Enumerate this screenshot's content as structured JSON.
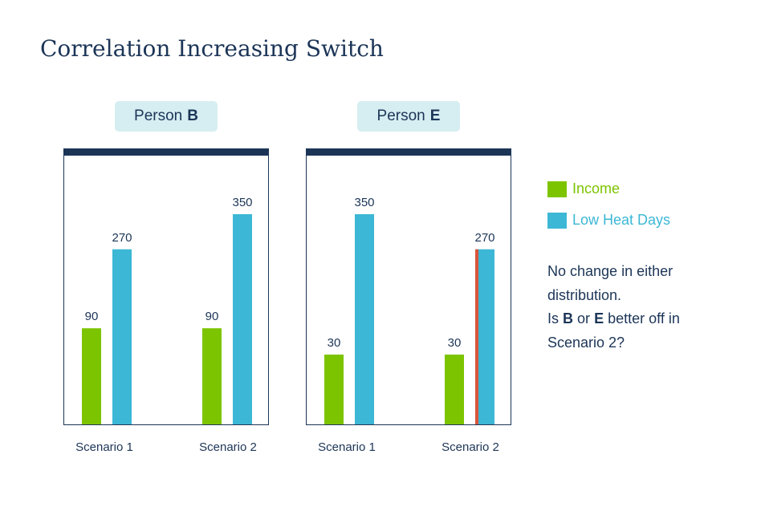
{
  "title": "Correlation Increasing Switch",
  "colors": {
    "income": "#7dc400",
    "low_heat_days": "#3cb7d5",
    "highlight": "#d9553c",
    "navy": "#1c3557"
  },
  "chart_data": [
    {
      "type": "bar",
      "person_prefix": "Person",
      "person_letter": "B",
      "categories": [
        "Scenario 1",
        "Scenario 2"
      ],
      "series": [
        {
          "name": "Income",
          "values": [
            90,
            90
          ]
        },
        {
          "name": "Low Heat Days",
          "values": [
            270,
            350
          ]
        }
      ]
    },
    {
      "type": "bar",
      "person_prefix": "Person",
      "person_letter": "E",
      "categories": [
        "Scenario 1",
        "Scenario 2"
      ],
      "series": [
        {
          "name": "Income",
          "values": [
            30,
            30
          ]
        },
        {
          "name": "Low Heat Days",
          "values": [
            350,
            270
          ]
        }
      ]
    }
  ],
  "legend": [
    "Income",
    "Low Heat Days"
  ],
  "note": {
    "line1": "No change in either",
    "line2": "distribution.",
    "q_is": "Is",
    "q_b": "B",
    "q_or": "or",
    "q_e": "E",
    "q_rest": "better off in",
    "line4": "Scenario 2?"
  }
}
